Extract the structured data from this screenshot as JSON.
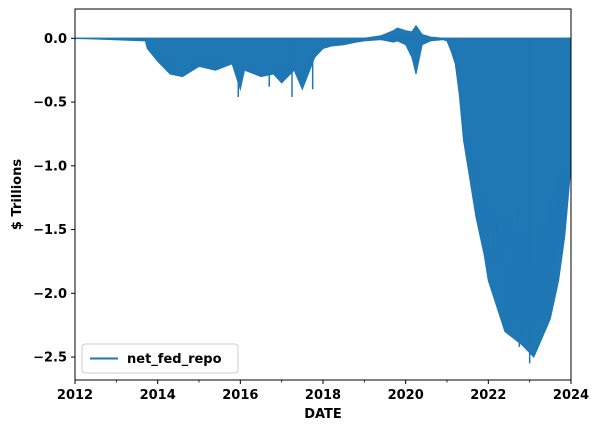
{
  "chart_data": {
    "type": "line",
    "title": "",
    "xlabel": "DATE",
    "ylabel": "$ Trillions",
    "xlim": [
      2012,
      2024
    ],
    "ylim": [
      -2.68,
      0.23
    ],
    "x_ticks": [
      2012,
      2014,
      2016,
      2018,
      2020,
      2022,
      2024
    ],
    "x_tick_labels": [
      "2012",
      "2014",
      "2016",
      "2018",
      "2020",
      "2022",
      "2024"
    ],
    "y_ticks": [
      0.0,
      -0.5,
      -1.0,
      -1.5,
      -2.0,
      -2.5
    ],
    "y_tick_labels": [
      "0.0",
      "−0.5",
      "−1.0",
      "−1.5",
      "−2.0",
      "−2.5"
    ],
    "grid": false,
    "legend": {
      "placement": "lower-left"
    },
    "series": [
      {
        "name": "net_fed_repo",
        "color": "#1f77b4",
        "envelope": {
          "x": [
            2012.0,
            2013.7,
            2013.75,
            2014.0,
            2014.3,
            2014.6,
            2015.0,
            2015.4,
            2015.8,
            2016.0,
            2016.1,
            2016.5,
            2016.8,
            2017.0,
            2017.3,
            2017.5,
            2017.8,
            2018.0,
            2018.2,
            2018.5,
            2018.8,
            2019.0,
            2019.4,
            2019.7,
            2019.8,
            2020.0,
            2020.15,
            2020.25,
            2020.4,
            2020.6,
            2020.9,
            2021.0,
            2021.1,
            2021.2,
            2021.3,
            2021.4,
            2021.5,
            2021.7,
            2021.9,
            2022.0,
            2022.2,
            2022.4,
            2022.6,
            2022.8,
            2022.95,
            2023.1,
            2023.3,
            2023.5,
            2023.7,
            2023.85,
            2024.0
          ],
          "upper": [
            0.0,
            0.0,
            0.0,
            0.0,
            0.0,
            0.0,
            0.0,
            0.0,
            0.0,
            0.0,
            0.0,
            0.0,
            0.0,
            0.0,
            0.0,
            0.0,
            0.0,
            0.0,
            0.0,
            0.0,
            0.0,
            0.0,
            0.02,
            0.06,
            0.08,
            0.06,
            0.05,
            0.1,
            0.03,
            0.01,
            0.0,
            0.0,
            0.0,
            0.0,
            0.0,
            0.0,
            0.0,
            0.0,
            0.0,
            0.0,
            0.0,
            0.0,
            0.0,
            0.0,
            0.0,
            0.0,
            0.0,
            0.0,
            0.0,
            0.0,
            0.0
          ],
          "lower": [
            0.0,
            -0.02,
            -0.08,
            -0.18,
            -0.28,
            -0.3,
            -0.22,
            -0.25,
            -0.2,
            -0.4,
            -0.25,
            -0.3,
            -0.28,
            -0.35,
            -0.25,
            -0.4,
            -0.15,
            -0.08,
            -0.06,
            -0.05,
            -0.03,
            -0.02,
            -0.01,
            -0.03,
            -0.02,
            -0.05,
            -0.15,
            -0.28,
            -0.05,
            -0.02,
            -0.01,
            -0.02,
            -0.1,
            -0.2,
            -0.45,
            -0.8,
            -1.0,
            -1.4,
            -1.7,
            -1.9,
            -2.1,
            -2.3,
            -2.35,
            -2.4,
            -2.45,
            -2.5,
            -2.35,
            -2.2,
            -1.9,
            -1.55,
            -1.0
          ]
        },
        "spikes": [
          {
            "x": 2015.95,
            "y": -0.46
          },
          {
            "x": 2016.7,
            "y": -0.38
          },
          {
            "x": 2017.25,
            "y": -0.46
          },
          {
            "x": 2017.75,
            "y": -0.4
          },
          {
            "x": 2020.25,
            "y": -0.27
          },
          {
            "x": 2023.0,
            "y": -2.55
          },
          {
            "x": 2022.75,
            "y": -2.42
          }
        ]
      }
    ]
  }
}
